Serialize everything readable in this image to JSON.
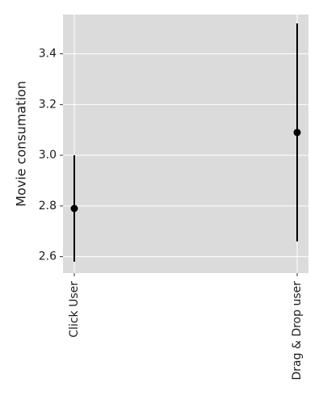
{
  "chart_data": {
    "type": "scatter",
    "title": "",
    "xlabel": "",
    "ylabel": "Movie consumation",
    "categories": [
      "Click User",
      "Drag & Drop user"
    ],
    "points": [
      {
        "category": "Click User",
        "value": 2.79,
        "lower": 2.58,
        "upper": 3.0
      },
      {
        "category": "Drag & Drop user",
        "value": 3.09,
        "lower": 2.66,
        "upper": 3.52
      }
    ],
    "ylim": [
      2.535,
      3.555
    ],
    "yticks": [
      2.6,
      2.8,
      3.0,
      3.2,
      3.4
    ],
    "ytick_labels": [
      "2.6",
      "2.8",
      "3.0",
      "3.2",
      "3.4"
    ],
    "grid": true,
    "legend": "none",
    "colors": {
      "plot_background": "#dbdbdb",
      "grid": "#ffffff",
      "marker": "#000000",
      "errorbar": "#000000"
    }
  }
}
